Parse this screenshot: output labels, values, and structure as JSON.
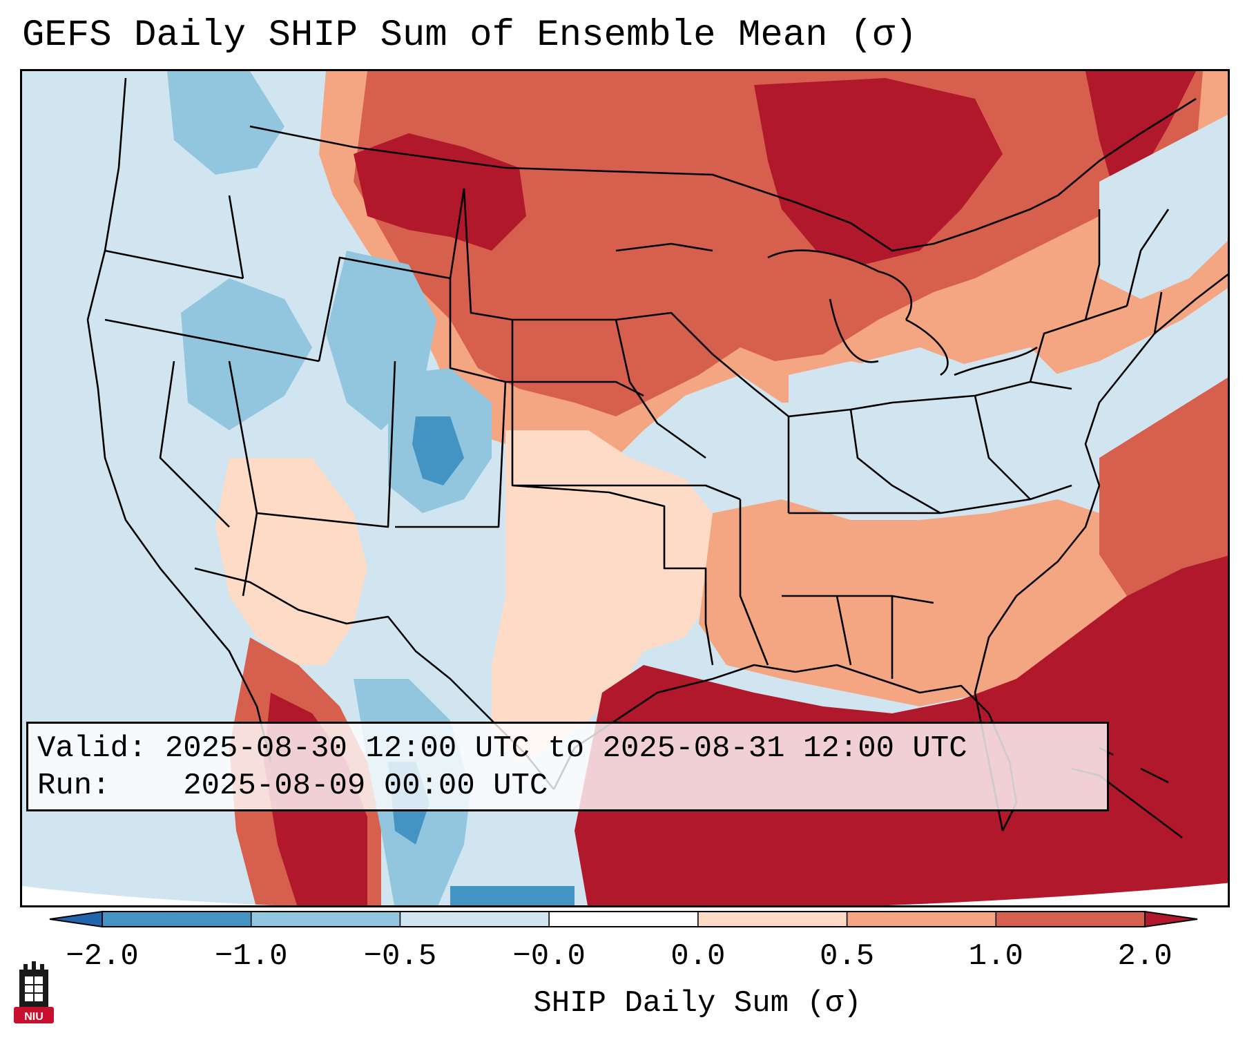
{
  "title": "GEFS Daily SHIP Sum of Ensemble Mean (σ)",
  "info_box": {
    "valid_label": "Valid:",
    "valid_value": "2025-08-30 12:00 UTC to 2025-08-31 12:00 UTC",
    "run_label": "Run:",
    "run_value": "2025-08-09 00:00 UTC"
  },
  "colorbar": {
    "label": "SHIP Daily Sum (σ)",
    "ticks": [
      "−2.0",
      "−1.0",
      "−0.5",
      "−0.0",
      "0.0",
      "0.5",
      "1.0",
      "2.0"
    ],
    "colors": [
      "#2166ac",
      "#4393c3",
      "#92c5de",
      "#d1e5f0",
      "#ffffff",
      "#fddbc7",
      "#f4a582",
      "#d6604d",
      "#b2182b"
    ],
    "extend": "both"
  },
  "logo": {
    "text": "NIU",
    "colors": {
      "tower": "#1a1a1a",
      "badge": "#c8102e"
    }
  },
  "map": {
    "region": "Contiguous United States",
    "projection": "Lambert Conformal",
    "field": "SHIP daily sum anomaly",
    "colors": {
      "strong_positive": "#b2182b",
      "positive": "#d6604d",
      "moderate_positive": "#f4a582",
      "weak_positive": "#fddbc7",
      "weak_negative": "#d1e5f0",
      "moderate_negative": "#92c5de",
      "negative": "#4393c3",
      "strong_negative": "#2166ac",
      "borders": "#000000"
    }
  }
}
